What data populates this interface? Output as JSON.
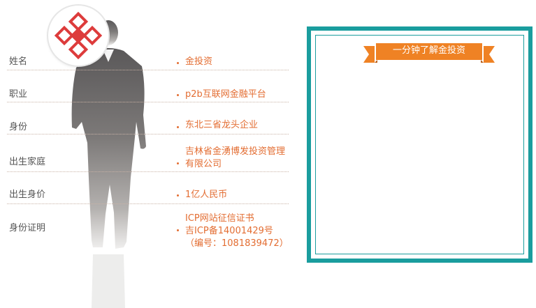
{
  "profile": {
    "rows": [
      {
        "label": "姓名",
        "value": [
          "金投资"
        ]
      },
      {
        "label": "职业",
        "value": [
          "p2b互联网金融平台"
        ]
      },
      {
        "label": "身份",
        "value": [
          "东北三省龙头企业"
        ]
      },
      {
        "label": "出生家庭",
        "value": [
          "吉林省金湧博发投资管理",
          "有限公司"
        ]
      },
      {
        "label": "出生身价",
        "value": [
          "1亿人民币"
        ]
      },
      {
        "label": "身份证明",
        "value": [
          "ICP网站征信证书",
          "吉ICP备14001429号",
          "（编号：1081839472）"
        ]
      }
    ]
  },
  "video_card": {
    "ribbon_label": "一分钟了解金投资",
    "accent_color": "#1a9d9e",
    "ribbon_color": "#ef8224"
  },
  "colors": {
    "value_text": "#e36d32",
    "label_text": "#555555",
    "logo_red": "#dd3b3b"
  }
}
